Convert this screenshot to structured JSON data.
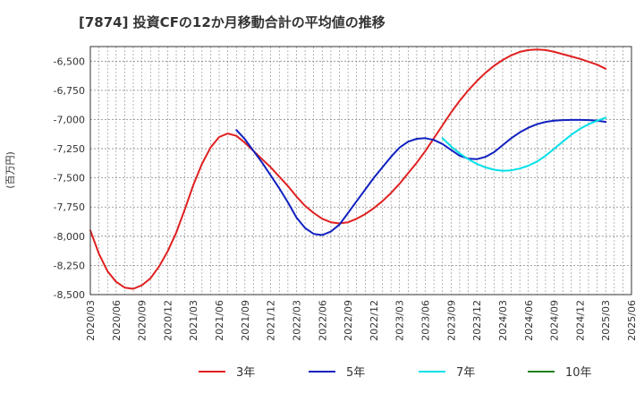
{
  "chart_data": {
    "type": "line",
    "title": "[7874]  投資CFの12か月移動合計の平均値の推移",
    "ylabel": "(百万円)",
    "xlabel": "",
    "ylim": [
      -8500,
      -6375
    ],
    "yticks": [
      -6500,
      -6750,
      -7000,
      -7250,
      -7500,
      -7750,
      -8000,
      -8250,
      -8500
    ],
    "ytick_labels": [
      "-6,500",
      "-6,750",
      "-7,000",
      "-7,250",
      "-7,500",
      "-7,750",
      "-8,000",
      "-8,250",
      "-8,500"
    ],
    "xticks": [
      "2020/03",
      "2020/06",
      "2020/09",
      "2020/12",
      "2021/03",
      "2021/06",
      "2021/09",
      "2021/12",
      "2022/03",
      "2022/06",
      "2022/09",
      "2022/12",
      "2023/03",
      "2023/06",
      "2023/09",
      "2023/12",
      "2024/03",
      "2024/06",
      "2024/09",
      "2024/12",
      "2025/03",
      "2025/06"
    ],
    "grid": true,
    "legend_position": "bottom",
    "series": [
      {
        "name": "3年",
        "color": "#e02020",
        "points": [
          [
            "2020/03",
            -7950
          ],
          [
            "2020/04",
            -8150
          ],
          [
            "2020/05",
            -8300
          ],
          [
            "2020/06",
            -8390
          ],
          [
            "2020/07",
            -8440
          ],
          [
            "2020/08",
            -8450
          ],
          [
            "2020/09",
            -8420
          ],
          [
            "2020/10",
            -8360
          ],
          [
            "2020/11",
            -8260
          ],
          [
            "2020/12",
            -8130
          ],
          [
            "2021/01",
            -7970
          ],
          [
            "2021/02",
            -7770
          ],
          [
            "2021/03",
            -7560
          ],
          [
            "2021/04",
            -7380
          ],
          [
            "2021/05",
            -7240
          ],
          [
            "2021/06",
            -7150
          ],
          [
            "2021/07",
            -7120
          ],
          [
            "2021/08",
            -7140
          ],
          [
            "2021/09",
            -7200
          ],
          [
            "2021/10",
            -7270
          ],
          [
            "2021/11",
            -7340
          ],
          [
            "2021/12",
            -7410
          ],
          [
            "2022/01",
            -7490
          ],
          [
            "2022/02",
            -7570
          ],
          [
            "2022/03",
            -7660
          ],
          [
            "2022/04",
            -7740
          ],
          [
            "2022/05",
            -7800
          ],
          [
            "2022/06",
            -7850
          ],
          [
            "2022/07",
            -7880
          ],
          [
            "2022/08",
            -7890
          ],
          [
            "2022/09",
            -7880
          ],
          [
            "2022/10",
            -7850
          ],
          [
            "2022/11",
            -7810
          ],
          [
            "2022/12",
            -7760
          ],
          [
            "2023/01",
            -7700
          ],
          [
            "2023/02",
            -7630
          ],
          [
            "2023/03",
            -7550
          ],
          [
            "2023/04",
            -7460
          ],
          [
            "2023/05",
            -7370
          ],
          [
            "2023/06",
            -7270
          ],
          [
            "2023/07",
            -7160
          ],
          [
            "2023/08",
            -7050
          ],
          [
            "2023/09",
            -6940
          ],
          [
            "2023/10",
            -6840
          ],
          [
            "2023/11",
            -6750
          ],
          [
            "2023/12",
            -6670
          ],
          [
            "2024/01",
            -6600
          ],
          [
            "2024/02",
            -6540
          ],
          [
            "2024/03",
            -6490
          ],
          [
            "2024/04",
            -6450
          ],
          [
            "2024/05",
            -6420
          ],
          [
            "2024/06",
            -6405
          ],
          [
            "2024/07",
            -6400
          ],
          [
            "2024/08",
            -6405
          ],
          [
            "2024/09",
            -6420
          ],
          [
            "2024/10",
            -6440
          ],
          [
            "2024/11",
            -6460
          ],
          [
            "2024/12",
            -6480
          ],
          [
            "2025/01",
            -6505
          ],
          [
            "2025/02",
            -6530
          ],
          [
            "2025/03",
            -6565
          ]
        ]
      },
      {
        "name": "5年",
        "color": "#1020c0",
        "points": [
          [
            "2021/08",
            -7090
          ],
          [
            "2021/09",
            -7170
          ],
          [
            "2021/10",
            -7270
          ],
          [
            "2021/11",
            -7370
          ],
          [
            "2021/12",
            -7480
          ],
          [
            "2022/01",
            -7590
          ],
          [
            "2022/02",
            -7710
          ],
          [
            "2022/03",
            -7840
          ],
          [
            "2022/04",
            -7930
          ],
          [
            "2022/05",
            -7980
          ],
          [
            "2022/06",
            -7990
          ],
          [
            "2022/07",
            -7960
          ],
          [
            "2022/08",
            -7900
          ],
          [
            "2022/09",
            -7800
          ],
          [
            "2022/10",
            -7700
          ],
          [
            "2022/11",
            -7600
          ],
          [
            "2022/12",
            -7500
          ],
          [
            "2023/01",
            -7410
          ],
          [
            "2023/02",
            -7320
          ],
          [
            "2023/03",
            -7240
          ],
          [
            "2023/04",
            -7190
          ],
          [
            "2023/05",
            -7165
          ],
          [
            "2023/06",
            -7160
          ],
          [
            "2023/07",
            -7175
          ],
          [
            "2023/08",
            -7210
          ],
          [
            "2023/09",
            -7260
          ],
          [
            "2023/10",
            -7310
          ],
          [
            "2023/11",
            -7335
          ],
          [
            "2023/12",
            -7340
          ],
          [
            "2024/01",
            -7320
          ],
          [
            "2024/02",
            -7280
          ],
          [
            "2024/03",
            -7220
          ],
          [
            "2024/04",
            -7160
          ],
          [
            "2024/05",
            -7110
          ],
          [
            "2024/06",
            -7070
          ],
          [
            "2024/07",
            -7040
          ],
          [
            "2024/08",
            -7020
          ],
          [
            "2024/09",
            -7010
          ],
          [
            "2024/10",
            -7005
          ],
          [
            "2024/11",
            -7003
          ],
          [
            "2024/12",
            -7003
          ],
          [
            "2025/01",
            -7005
          ],
          [
            "2025/02",
            -7010
          ],
          [
            "2025/03",
            -7020
          ]
        ]
      },
      {
        "name": "7年",
        "color": "#00e0e8",
        "points": [
          [
            "2023/08",
            -7160
          ],
          [
            "2023/09",
            -7230
          ],
          [
            "2023/10",
            -7290
          ],
          [
            "2023/11",
            -7340
          ],
          [
            "2023/12",
            -7380
          ],
          [
            "2024/01",
            -7410
          ],
          [
            "2024/02",
            -7430
          ],
          [
            "2024/03",
            -7440
          ],
          [
            "2024/04",
            -7435
          ],
          [
            "2024/05",
            -7420
          ],
          [
            "2024/06",
            -7395
          ],
          [
            "2024/07",
            -7360
          ],
          [
            "2024/08",
            -7310
          ],
          [
            "2024/09",
            -7250
          ],
          [
            "2024/10",
            -7190
          ],
          [
            "2024/11",
            -7130
          ],
          [
            "2024/12",
            -7080
          ],
          [
            "2025/01",
            -7040
          ],
          [
            "2025/02",
            -7010
          ],
          [
            "2025/03",
            -6985
          ]
        ]
      },
      {
        "name": "10年",
        "color": "#208020",
        "points": []
      }
    ]
  }
}
